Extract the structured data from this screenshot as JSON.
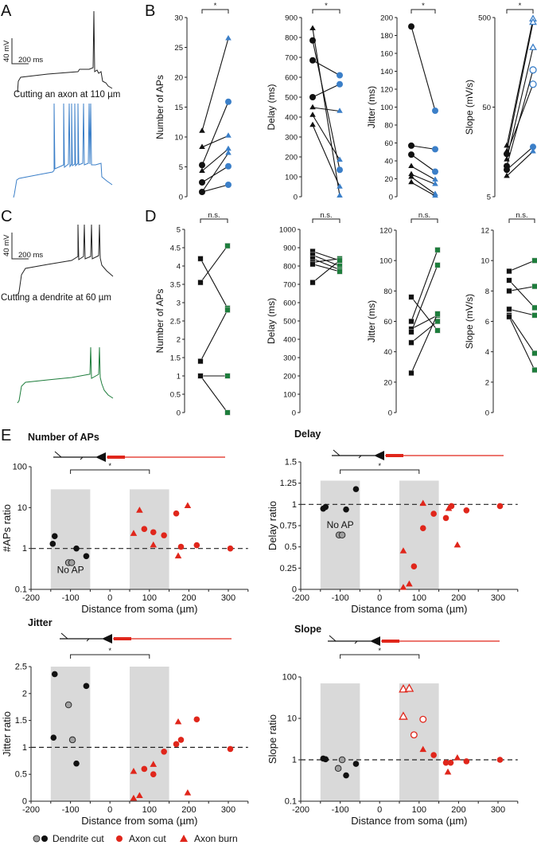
{
  "panels": {
    "A": "A",
    "B": "B",
    "C": "C",
    "D": "D",
    "E": "E"
  },
  "traces": {
    "scale_mv": "40 mV",
    "scale_ms": "200 ms",
    "axon_caption": "Cutting an axon at 110 µm",
    "dendrite_caption": "Cutting a dendrite at 60 µm"
  },
  "colors": {
    "axon_after": "#3b7fc8",
    "dendrite_after": "#1e7d3c",
    "red": "#e0261b",
    "grey_band": "#d9d9d9",
    "grey_point": "#a0a0a0"
  },
  "legend": {
    "dendrite": "Dendrite cut",
    "axon_cut": "Axon cut",
    "axon_burn": "Axon burn"
  },
  "no_ap_label": "No AP",
  "chart_data": [
    {
      "id": "B1",
      "type": "line",
      "panel": "B",
      "ylabel": "Number of APs",
      "scale": "linear",
      "ylim": [
        0,
        30
      ],
      "yticks": [
        0,
        5,
        10,
        15,
        20,
        25,
        30
      ],
      "significance": "*",
      "after_color": "#3b7fc8",
      "pairs": [
        {
          "before": 11,
          "after": 26.5,
          "marker": "triangle"
        },
        {
          "before": 8.3,
          "after": 10.2,
          "marker": "triangle"
        },
        {
          "before": 5.3,
          "after": 15.9,
          "marker": "circle"
        },
        {
          "before": 4.3,
          "after": 8.0,
          "marker": "triangle"
        },
        {
          "before": 0.8,
          "after": 7.3,
          "marker": "triangle"
        },
        {
          "before": 2.4,
          "after": 5.1,
          "marker": "circle"
        },
        {
          "before": 0.8,
          "after": 2.0,
          "marker": "circle"
        }
      ]
    },
    {
      "id": "B2",
      "type": "line",
      "panel": "B",
      "ylabel": "Delay (ms)",
      "scale": "linear",
      "ylim": [
        0,
        900
      ],
      "yticks": [
        0,
        100,
        200,
        300,
        400,
        500,
        600,
        700,
        800,
        900
      ],
      "significance": "*",
      "after_color": "#3b7fc8",
      "pairs": [
        {
          "before": 845,
          "after": 5,
          "marker": "triangle"
        },
        {
          "before": 785,
          "after": 135,
          "marker": "circle"
        },
        {
          "before": 685,
          "after": 610,
          "marker": "circle"
        },
        {
          "before": 500,
          "after": 565,
          "marker": "circle"
        },
        {
          "before": 448,
          "after": 430,
          "marker": "triangle"
        },
        {
          "before": 410,
          "after": 185,
          "marker": "triangle"
        },
        {
          "before": 360,
          "after": 50,
          "marker": "triangle"
        }
      ]
    },
    {
      "id": "B3",
      "type": "line",
      "panel": "B",
      "ylabel": "Jitter (ms)",
      "scale": "linear",
      "ylim": [
        0,
        200
      ],
      "yticks": [
        0,
        20,
        40,
        60,
        80,
        100,
        120,
        140,
        160,
        180,
        200
      ],
      "significance": "*",
      "after_color": "#3b7fc8",
      "pairs": [
        {
          "before": 190,
          "after": 96,
          "marker": "circle"
        },
        {
          "before": 57,
          "after": 53,
          "marker": "circle"
        },
        {
          "before": 47,
          "after": 28,
          "marker": "circle"
        },
        {
          "before": 34,
          "after": 19,
          "marker": "triangle"
        },
        {
          "before": 25,
          "after": 14,
          "marker": "triangle"
        },
        {
          "before": 22,
          "after": 3,
          "marker": "triangle"
        },
        {
          "before": 16,
          "after": 1,
          "marker": "triangle"
        }
      ]
    },
    {
      "id": "B4",
      "type": "line",
      "panel": "B",
      "ylabel": "Slope (mV/s)",
      "scale": "log",
      "ylim": [
        5,
        500
      ],
      "yticks": [
        5,
        50,
        500
      ],
      "significance": "*",
      "after_color": "#3b7fc8",
      "pairs": [
        {
          "before": 18.5,
          "after": 480,
          "marker": "triangle",
          "after_open": true
        },
        {
          "before": 16,
          "after": 440,
          "marker": "triangle",
          "after_open": true
        },
        {
          "before": 13,
          "after": 230,
          "marker": "triangle",
          "after_open": true
        },
        {
          "before": 11,
          "after": 130,
          "marker": "circle",
          "after_open": true
        },
        {
          "before": 15,
          "after": 90,
          "marker": "circle",
          "after_open": true
        },
        {
          "before": 10,
          "after": 18,
          "marker": "circle"
        },
        {
          "before": 8.5,
          "after": 16,
          "marker": "triangle"
        }
      ]
    },
    {
      "id": "D1",
      "type": "line",
      "panel": "D",
      "ylabel": "Number of APs",
      "scale": "linear",
      "ylim": [
        0,
        5
      ],
      "yticks": [
        0,
        0.5,
        1,
        1.5,
        2,
        2.5,
        3,
        3.5,
        4,
        4.5,
        5
      ],
      "significance": "n.s.",
      "after_color": "#1e7d3c",
      "pairs": [
        {
          "before": 4.2,
          "after": 2.85,
          "marker": "square"
        },
        {
          "before": 3.55,
          "after": 4.55,
          "marker": "square"
        },
        {
          "before": 1.4,
          "after": 2.8,
          "marker": "square"
        },
        {
          "before": 1,
          "after": 1,
          "marker": "square"
        },
        {
          "before": 1,
          "after": 0,
          "marker": "square"
        }
      ]
    },
    {
      "id": "D2",
      "type": "line",
      "panel": "D",
      "ylabel": "Delay (ms)",
      "scale": "linear",
      "ylim": [
        0,
        1000
      ],
      "yticks": [
        0,
        100,
        200,
        300,
        400,
        500,
        600,
        700,
        800,
        900,
        1000
      ],
      "significance": "n.s.",
      "after_color": "#1e7d3c",
      "pairs": [
        {
          "before": 880,
          "after": 830,
          "marker": "square"
        },
        {
          "before": 860,
          "after": 800,
          "marker": "square"
        },
        {
          "before": 840,
          "after": 780,
          "marker": "square"
        },
        {
          "before": 820,
          "after": 840,
          "marker": "square"
        },
        {
          "before": 810,
          "after": 770,
          "marker": "square"
        },
        {
          "before": 710,
          "after": 830,
          "marker": "square"
        }
      ]
    },
    {
      "id": "D3",
      "type": "line",
      "panel": "D",
      "ylabel": "Jitter (ms)",
      "scale": "linear",
      "ylim": [
        0,
        120
      ],
      "yticks": [
        0,
        20,
        40,
        60,
        80,
        100,
        120
      ],
      "significance": "n.s.",
      "after_color": "#1e7d3c",
      "pairs": [
        {
          "before": 76,
          "after": 54,
          "marker": "square"
        },
        {
          "before": 60,
          "after": 107,
          "marker": "square"
        },
        {
          "before": 55,
          "after": 64,
          "marker": "square"
        },
        {
          "before": 53,
          "after": 97,
          "marker": "square"
        },
        {
          "before": 46,
          "after": 60,
          "marker": "square"
        },
        {
          "before": 26,
          "after": 65,
          "marker": "square"
        }
      ]
    },
    {
      "id": "D4",
      "type": "line",
      "panel": "D",
      "ylabel": "Slope (mV/s)",
      "scale": "linear",
      "ylim": [
        0,
        12
      ],
      "yticks": [
        0,
        2,
        4,
        6,
        8,
        10,
        12
      ],
      "significance": "n.s.",
      "after_color": "#1e7d3c",
      "pairs": [
        {
          "before": 9.3,
          "after": 10,
          "marker": "square"
        },
        {
          "before": 8.7,
          "after": 6.9,
          "marker": "square"
        },
        {
          "before": 8,
          "after": 8.3,
          "marker": "square"
        },
        {
          "before": 6.8,
          "after": 6.4,
          "marker": "square"
        },
        {
          "before": 6.4,
          "after": 3.9,
          "marker": "square"
        },
        {
          "before": 6.3,
          "after": 2.8,
          "marker": "square"
        }
      ]
    },
    {
      "id": "E1",
      "type": "scatter",
      "panel": "E",
      "title": "Number of APs",
      "xlabel": "Distance from soma (µm)",
      "ylabel": "#APs ratio",
      "scale": "log",
      "xlim": [
        -200,
        350
      ],
      "xticks": [
        -200,
        -100,
        0,
        100,
        200,
        300
      ],
      "ylim": [
        0.1,
        100
      ],
      "yticks": [
        0.1,
        1,
        10,
        100
      ],
      "band_top": 28,
      "reference": 1,
      "significance": "*",
      "no_ap": {
        "x": -100,
        "y": 0.3
      },
      "points": [
        {
          "x": -145,
          "y": 1.3,
          "s": "dendrite"
        },
        {
          "x": -140,
          "y": 2.0,
          "s": "dendrite"
        },
        {
          "x": -85,
          "y": 1.0,
          "s": "dendrite"
        },
        {
          "x": -60,
          "y": 0.65,
          "s": "dendrite"
        },
        {
          "x": -105,
          "y": 0.45,
          "s": "dendrite-grey"
        },
        {
          "x": -97,
          "y": 0.45,
          "s": "dendrite-grey"
        },
        {
          "x": 87,
          "y": 3.0,
          "s": "axon-cut"
        },
        {
          "x": 110,
          "y": 2.5,
          "s": "axon-cut"
        },
        {
          "x": 137,
          "y": 2.1,
          "s": "axon-cut"
        },
        {
          "x": 168,
          "y": 7.2,
          "s": "axon-cut"
        },
        {
          "x": 180,
          "y": 1.1,
          "s": "axon-cut"
        },
        {
          "x": 220,
          "y": 1.2,
          "s": "axon-cut"
        },
        {
          "x": 305,
          "y": 1.0,
          "s": "axon-cut"
        },
        {
          "x": 60,
          "y": 2.3,
          "s": "axon-burn"
        },
        {
          "x": 75,
          "y": 8.5,
          "s": "axon-burn"
        },
        {
          "x": 110,
          "y": 1.2,
          "s": "axon-burn"
        },
        {
          "x": 173,
          "y": 0.65,
          "s": "axon-burn"
        },
        {
          "x": 197,
          "y": 11,
          "s": "axon-burn"
        }
      ]
    },
    {
      "id": "E2",
      "type": "scatter",
      "panel": "E",
      "title": "Delay",
      "xlabel": "Distance from soma (µm)",
      "ylabel": "Delay ratio",
      "scale": "linear",
      "xlim": [
        -200,
        350
      ],
      "xticks": [
        -200,
        -100,
        0,
        100,
        200,
        300
      ],
      "ylim": [
        0,
        1.5
      ],
      "yticks": [
        0,
        0.25,
        0.5,
        0.75,
        1,
        1.25,
        1.5
      ],
      "band_top": 1.28,
      "reference": 1,
      "significance": "*",
      "no_ap": {
        "x": -100,
        "y": 0.76
      },
      "points": [
        {
          "x": -143,
          "y": 0.95,
          "s": "dendrite"
        },
        {
          "x": -137,
          "y": 0.97,
          "s": "dendrite"
        },
        {
          "x": -85,
          "y": 0.94,
          "s": "dendrite"
        },
        {
          "x": -60,
          "y": 1.18,
          "s": "dendrite"
        },
        {
          "x": -103,
          "y": 0.64,
          "s": "dendrite-grey"
        },
        {
          "x": -95,
          "y": 0.64,
          "s": "dendrite-grey"
        },
        {
          "x": 87,
          "y": 0.27,
          "s": "axon-cut"
        },
        {
          "x": 110,
          "y": 0.72,
          "s": "axon-cut"
        },
        {
          "x": 137,
          "y": 0.89,
          "s": "axon-cut"
        },
        {
          "x": 168,
          "y": 0.84,
          "s": "axon-cut"
        },
        {
          "x": 182,
          "y": 0.98,
          "s": "axon-cut"
        },
        {
          "x": 220,
          "y": 0.93,
          "s": "axon-cut"
        },
        {
          "x": 305,
          "y": 0.98,
          "s": "axon-cut"
        },
        {
          "x": 60,
          "y": 0.45,
          "s": "axon-burn"
        },
        {
          "x": 60,
          "y": 0.02,
          "s": "axon-burn"
        },
        {
          "x": 75,
          "y": 0.06,
          "s": "axon-burn"
        },
        {
          "x": 110,
          "y": 1.01,
          "s": "axon-burn"
        },
        {
          "x": 175,
          "y": 0.95,
          "s": "axon-burn"
        },
        {
          "x": 197,
          "y": 0.52,
          "s": "axon-burn"
        }
      ]
    },
    {
      "id": "E3",
      "type": "scatter",
      "panel": "E",
      "title": "Jitter",
      "xlabel": "Distance from soma (µm)",
      "ylabel": "Jitter ratio",
      "scale": "linear",
      "xlim": [
        -200,
        350
      ],
      "xticks": [
        -200,
        -100,
        0,
        100,
        200,
        300
      ],
      "ylim": [
        0,
        2.5
      ],
      "yticks": [
        0,
        0.5,
        1,
        1.5,
        2,
        2.5
      ],
      "band_top": 2.5,
      "reference": 1,
      "significance": "*",
      "points": [
        {
          "x": -143,
          "y": 1.18,
          "s": "dendrite"
        },
        {
          "x": -140,
          "y": 2.36,
          "s": "dendrite"
        },
        {
          "x": -85,
          "y": 0.7,
          "s": "dendrite"
        },
        {
          "x": -60,
          "y": 2.14,
          "s": "dendrite"
        },
        {
          "x": -105,
          "y": 1.79,
          "s": "dendrite-grey"
        },
        {
          "x": -95,
          "y": 1.14,
          "s": "dendrite-grey"
        },
        {
          "x": 87,
          "y": 0.6,
          "s": "axon-cut"
        },
        {
          "x": 110,
          "y": 0.5,
          "s": "axon-cut"
        },
        {
          "x": 137,
          "y": 0.92,
          "s": "axon-cut"
        },
        {
          "x": 168,
          "y": 1.06,
          "s": "axon-cut"
        },
        {
          "x": 180,
          "y": 1.14,
          "s": "axon-cut"
        },
        {
          "x": 220,
          "y": 1.52,
          "s": "axon-cut"
        },
        {
          "x": 305,
          "y": 0.97,
          "s": "axon-cut"
        },
        {
          "x": 60,
          "y": 0.55,
          "s": "axon-burn"
        },
        {
          "x": 60,
          "y": 0.05,
          "s": "axon-burn"
        },
        {
          "x": 75,
          "y": 0.1,
          "s": "axon-burn"
        },
        {
          "x": 110,
          "y": 0.68,
          "s": "axon-burn"
        },
        {
          "x": 173,
          "y": 1.47,
          "s": "axon-burn"
        },
        {
          "x": 197,
          "y": 0.15,
          "s": "axon-burn"
        }
      ]
    },
    {
      "id": "E4",
      "type": "scatter",
      "panel": "E",
      "title": "Slope",
      "xlabel": "Distance from soma (µm)",
      "ylabel": "Slope ratio",
      "scale": "log",
      "xlim": [
        -200,
        350
      ],
      "xticks": [
        -200,
        -100,
        0,
        100,
        200,
        300
      ],
      "ylim": [
        0.1,
        100
      ],
      "yticks": [
        0.1,
        1,
        10,
        100
      ],
      "band_top": 70,
      "reference": 1,
      "significance": "*",
      "points": [
        {
          "x": -143,
          "y": 1.07,
          "s": "dendrite"
        },
        {
          "x": -137,
          "y": 1.03,
          "s": "dendrite"
        },
        {
          "x": -85,
          "y": 0.42,
          "s": "dendrite"
        },
        {
          "x": -60,
          "y": 0.8,
          "s": "dendrite"
        },
        {
          "x": -105,
          "y": 0.62,
          "s": "dendrite-grey"
        },
        {
          "x": -95,
          "y": 1.0,
          "s": "dendrite-grey"
        },
        {
          "x": 137,
          "y": 1.3,
          "s": "axon-cut"
        },
        {
          "x": 168,
          "y": 0.85,
          "s": "axon-cut"
        },
        {
          "x": 180,
          "y": 0.85,
          "s": "axon-cut"
        },
        {
          "x": 220,
          "y": 0.92,
          "s": "axon-cut"
        },
        {
          "x": 305,
          "y": 1.0,
          "s": "axon-cut"
        },
        {
          "x": 87,
          "y": 4,
          "s": "axon-cut-open"
        },
        {
          "x": 110,
          "y": 9.5,
          "s": "axon-cut-open"
        },
        {
          "x": 60,
          "y": 50,
          "s": "axon-burn-open"
        },
        {
          "x": 75,
          "y": 52,
          "s": "axon-burn-open"
        },
        {
          "x": 60,
          "y": 11,
          "s": "axon-burn-open"
        },
        {
          "x": 110,
          "y": 1.75,
          "s": "axon-burn"
        },
        {
          "x": 173,
          "y": 0.5,
          "s": "axon-burn"
        },
        {
          "x": 197,
          "y": 1.1,
          "s": "axon-burn"
        }
      ]
    }
  ]
}
